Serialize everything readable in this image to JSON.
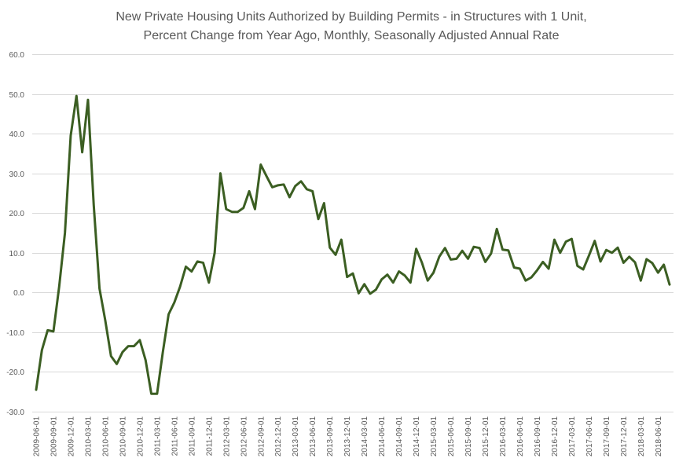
{
  "chart_data": {
    "type": "line",
    "title_lines": [
      "New Private Housing Units Authorized by Building Permits - in Structures with 1 Unit,",
      "Percent Change from Year Ago, Monthly, Seasonally Adjusted Annual Rate"
    ],
    "xlabel": "",
    "ylabel": "",
    "ylim": [
      -30,
      60
    ],
    "grid": true,
    "legend": "none",
    "y_ticks": [
      "60.0",
      "50.0",
      "40.0",
      "30.0",
      "20.0",
      "10.0",
      "0.0",
      "-10.0",
      "-20.0",
      "-30.0"
    ],
    "y_tick_values": [
      60,
      50,
      40,
      30,
      20,
      10,
      0,
      -10,
      -20,
      -30
    ],
    "x_tick_labels": [
      "2009-06-01",
      "2009-09-01",
      "2009-12-01",
      "2010-03-01",
      "2010-06-01",
      "2010-09-01",
      "2010-12-01",
      "2011-03-01",
      "2011-06-01",
      "2011-09-01",
      "2011-12-01",
      "2012-03-01",
      "2012-06-01",
      "2012-09-01",
      "2012-12-01",
      "2013-03-01",
      "2013-06-01",
      "2013-09-01",
      "2013-12-01",
      "2014-03-01",
      "2014-06-01",
      "2014-09-01",
      "2014-12-01",
      "2015-03-01",
      "2015-06-01",
      "2015-09-01",
      "2015-12-01",
      "2016-03-01",
      "2016-06-01",
      "2016-09-01",
      "2016-12-01",
      "2017-03-01",
      "2017-06-01",
      "2017-09-01",
      "2017-12-01",
      "2018-03-01",
      "2018-06-01"
    ],
    "x_start": "2009-06-01",
    "x_end": "2018-08-01",
    "color": "#3b5e22",
    "series": [
      {
        "values": [
          -24.5,
          -14.5,
          -9.5,
          -9.8,
          1.5,
          15,
          39.5,
          49.5,
          35.3,
          48.5,
          22,
          1,
          -7,
          -16,
          -18,
          -15,
          -13.5,
          -13.5,
          -12,
          -17,
          -25.5,
          -25.5,
          -15,
          -5.5,
          -2.5,
          1.5,
          6.5,
          5.3,
          7.8,
          7.5,
          2.5,
          10,
          30,
          21,
          20.3,
          20.3,
          21.3,
          25.5,
          21,
          32.2,
          29.3,
          26.5,
          27,
          27.2,
          24,
          26.8,
          28,
          26,
          25.5,
          18.5,
          22.5,
          11.3,
          9.5,
          13.3,
          3.9,
          4.8,
          -0.2,
          2.1,
          -0.3,
          0.7,
          3.3,
          4.5,
          2.5,
          5.3,
          4.3,
          2.5,
          11,
          7.5,
          3,
          5,
          9,
          11.2,
          8.3,
          8.5,
          10.5,
          8.5,
          11.5,
          11.2,
          7.7,
          9.8,
          16,
          10.8,
          10.6,
          6.3,
          6,
          3,
          3.8,
          5.6,
          7.7,
          6,
          13.3,
          10,
          12.8,
          13.5,
          6.7,
          5.8,
          9.3,
          13,
          7.8,
          10.7,
          10,
          11.3,
          7.5,
          9,
          7.6,
          3,
          8.4,
          7.4,
          5,
          7,
          2
        ]
      }
    ]
  }
}
